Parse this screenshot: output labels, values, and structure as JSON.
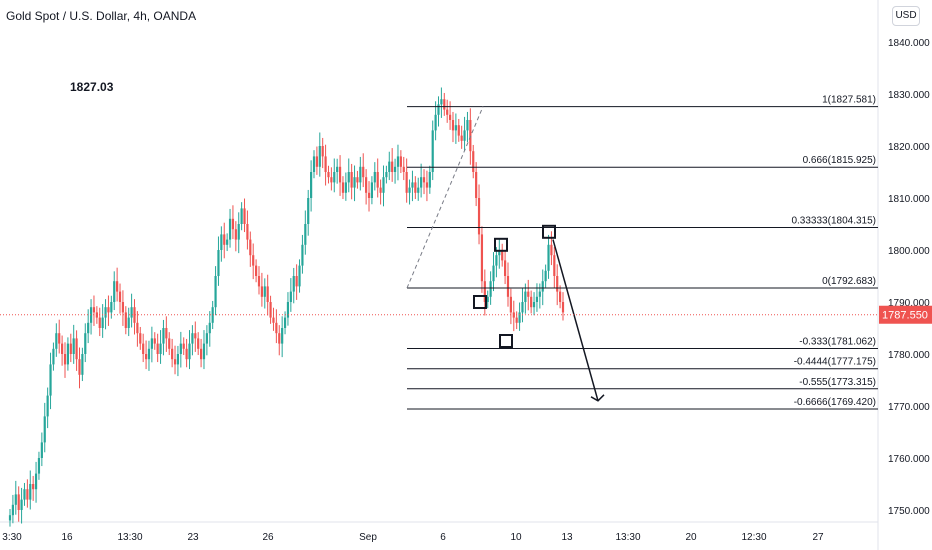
{
  "header": {
    "title": "Gold Spot / U.S. Dollar, 4h, OANDA"
  },
  "annotation": {
    "price_note": "1827.03"
  },
  "currency_button": {
    "label": "USD"
  },
  "current_price": {
    "label": "1787.550",
    "value": 1787.55
  },
  "colors": {
    "up": "#26a69a",
    "down": "#ef5350",
    "line": "#131722",
    "price_tag": "#ef5350",
    "axis_text": "#131722"
  },
  "chart_data": {
    "type": "candlestick",
    "title": "Gold Spot / U.S. Dollar, 4h, OANDA",
    "ylim": [
      1748,
      1846
    ],
    "y_ticks": [
      1750,
      1760,
      1770,
      1780,
      1790,
      1800,
      1810,
      1820,
      1830,
      1840
    ],
    "y_tick_labels": [
      "1750.000",
      "1760.000",
      "1770.000",
      "1780.000",
      "1790.000",
      "1800.000",
      "1810.000",
      "1820.000",
      "1830.000",
      "1840.000"
    ],
    "x_tick_labels": [
      "3:30",
      "16",
      "13:30",
      "23",
      "26",
      "Sep",
      "6",
      "10",
      "13",
      "13:30",
      "20",
      "12:30",
      "27"
    ],
    "fib_levels": [
      {
        "ratio": "1",
        "price": 1827.581,
        "label": "1(1827.581)"
      },
      {
        "ratio": "0.666",
        "price": 1815.925,
        "label": "0.666(1815.925)"
      },
      {
        "ratio": "0.33333",
        "price": 1804.315,
        "label": "0.33333(1804.315)"
      },
      {
        "ratio": "0",
        "price": 1792.683,
        "label": "0(1792.683)"
      },
      {
        "ratio": "-0.333",
        "price": 1781.062,
        "label": "-0.333(1781.062)"
      },
      {
        "ratio": "-0.4444",
        "price": 1777.175,
        "label": "-0.4444(1777.175)"
      },
      {
        "ratio": "-0.555",
        "price": 1773.315,
        "label": "-0.555(1773.315)"
      },
      {
        "ratio": "-0.6666",
        "price": 1769.42,
        "label": "-0.6666(1769.420)"
      }
    ],
    "candles_close": [
      1749,
      1751,
      1753,
      1750,
      1752,
      1754,
      1752,
      1755,
      1754,
      1757,
      1760,
      1763,
      1768,
      1772,
      1778,
      1781,
      1784,
      1782,
      1780,
      1778,
      1782,
      1780,
      1783,
      1779,
      1776,
      1780,
      1784,
      1786,
      1789,
      1788,
      1787,
      1785,
      1787,
      1789,
      1788,
      1790,
      1794,
      1792,
      1790,
      1788,
      1785,
      1787,
      1789,
      1786,
      1784,
      1782,
      1780,
      1779,
      1781,
      1783,
      1782,
      1780,
      1782,
      1785,
      1783,
      1781,
      1779,
      1778,
      1780,
      1782,
      1781,
      1779,
      1782,
      1784,
      1783,
      1781,
      1779,
      1782,
      1784,
      1786,
      1789,
      1795,
      1800,
      1803,
      1801,
      1802,
      1806,
      1804,
      1802,
      1805,
      1808,
      1805,
      1802,
      1799,
      1797,
      1795,
      1793,
      1791,
      1793,
      1790,
      1787,
      1786,
      1784,
      1782,
      1785,
      1787,
      1790,
      1792,
      1795,
      1793,
      1797,
      1801,
      1805,
      1810,
      1815,
      1818,
      1816,
      1820,
      1818,
      1815,
      1814,
      1813,
      1815,
      1816,
      1813,
      1811,
      1813,
      1815,
      1812,
      1814,
      1813,
      1816,
      1814,
      1811,
      1810,
      1813,
      1815,
      1812,
      1811,
      1814,
      1815,
      1817,
      1815,
      1816,
      1818,
      1816,
      1815,
      1811,
      1812,
      1813,
      1811,
      1812,
      1814,
      1813,
      1812,
      1815,
      1823,
      1826,
      1828,
      1829,
      1827,
      1826,
      1825,
      1823,
      1824,
      1822,
      1821,
      1823,
      1825,
      1819,
      1815,
      1810,
      1803,
      1794,
      1790,
      1791,
      1794,
      1797,
      1799,
      1800,
      1798,
      1795,
      1791,
      1788,
      1787,
      1786,
      1788,
      1790,
      1792,
      1791,
      1789,
      1790,
      1791,
      1792,
      1794,
      1796,
      1801,
      1799,
      1795,
      1792,
      1790,
      1788
    ]
  }
}
